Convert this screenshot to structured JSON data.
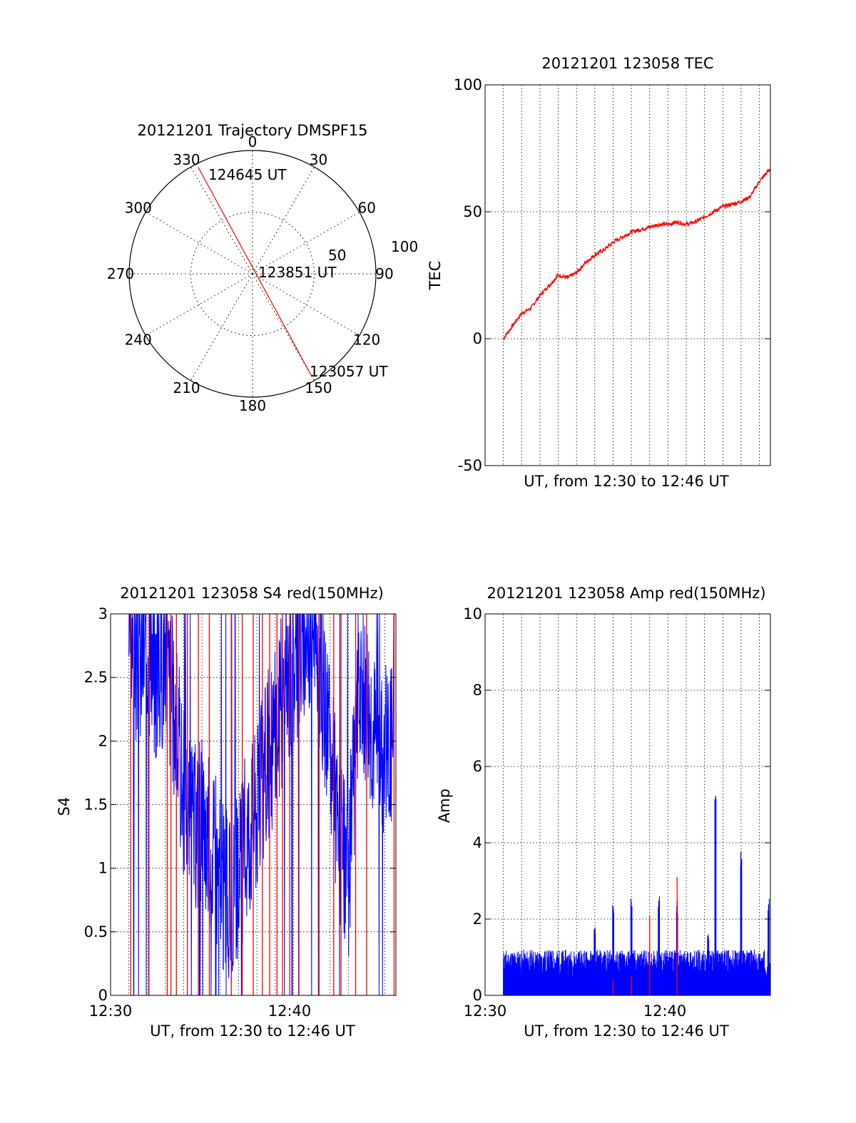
{
  "colors": {
    "red": "#ff0000",
    "blue": "#0000ff",
    "axis": "#000000",
    "grid": "#000000"
  },
  "chart_data": [
    {
      "type": "polar",
      "title": "20121201 Trajectory DMSPF15",
      "angle_labels": [
        "0",
        "30",
        "60",
        "90",
        "120",
        "150",
        "180",
        "210",
        "240",
        "270",
        "300",
        "330"
      ],
      "radial_labels": [
        "50",
        "100"
      ],
      "radial_max": 100,
      "grid": true,
      "trajectory": {
        "start_label": "123057 UT",
        "start": {
          "azimuth": 150,
          "radius": 96
        },
        "mid_label": "123851 UT",
        "mid": {
          "azimuth": 0,
          "radius": 0
        },
        "end_label": "124645 UT",
        "end": {
          "azimuth": 333,
          "radius": 97
        }
      }
    },
    {
      "type": "line",
      "title": "20121201 123058 TEC",
      "xlabel": "UT, from 12:30 to 12:46 UT",
      "ylabel": "TEC",
      "xlim": [
        0,
        15.6
      ],
      "ylim": [
        -50,
        100
      ],
      "yticks": [
        "-50",
        "0",
        "50",
        "100"
      ],
      "grid": true,
      "series": [
        {
          "color": "red",
          "x": [
            1.0,
            1.5,
            2.0,
            2.5,
            3.0,
            3.5,
            4.0,
            4.5,
            5.0,
            5.5,
            6.0,
            6.5,
            7.0,
            7.5,
            8.0,
            8.5,
            9.0,
            9.5,
            10.0,
            10.5,
            11.0,
            11.5,
            12.0,
            12.5,
            13.0,
            13.5,
            14.0,
            14.5,
            15.0,
            15.6
          ],
          "y": [
            0,
            5,
            10,
            12,
            17,
            21,
            25,
            24,
            26,
            30,
            33,
            35,
            38,
            40,
            42,
            43,
            44,
            45,
            45,
            46,
            45,
            46,
            48,
            50,
            52,
            53,
            54,
            56,
            62,
            67
          ]
        }
      ]
    },
    {
      "type": "line",
      "title": "20121201 123058 S4 red(150MHz)",
      "xlabel": "UT, from 12:30 to 12:46 UT",
      "ylabel": "S4",
      "xlim": [
        0,
        15.6
      ],
      "ylim": [
        0,
        3
      ],
      "xticks": [
        "12:30",
        "12:40"
      ],
      "yticks": [
        "0",
        "0.5",
        "1",
        "1.5",
        "2",
        "2.5",
        "3"
      ],
      "grid": true,
      "series": [
        {
          "color": "blue",
          "note": "dense noisy trace",
          "x": [
            1.0,
            1.5,
            2.0,
            2.5,
            3.0,
            3.5,
            4.0,
            4.5,
            5.0,
            5.5,
            6.0,
            6.5,
            7.0,
            7.5,
            8.0,
            8.5,
            9.0,
            9.5,
            10.0,
            10.5,
            11.0,
            11.5,
            12.0,
            12.5,
            13.0,
            13.5,
            14.0,
            14.5,
            15.0,
            15.5
          ],
          "y": [
            2.9,
            2.6,
            2.8,
            2.5,
            2.7,
            2.2,
            1.6,
            1.3,
            1.4,
            1.2,
            0.9,
            0.7,
            0.9,
            1.3,
            1.5,
            1.8,
            2.1,
            2.4,
            2.6,
            2.8,
            2.9,
            2.5,
            1.9,
            1.2,
            0.9,
            2.2,
            2.4,
            2.0,
            1.9,
            2.1
          ]
        },
        {
          "color": "red",
          "note": "sparse spikes",
          "x": [
            1.1,
            2.1,
            3.1,
            3.3,
            3.6,
            4.2,
            4.8,
            5.4,
            6.6,
            7.2,
            7.8,
            8.3,
            8.7,
            9.1,
            9.4,
            9.8,
            10.3,
            11.4,
            12.2,
            12.6,
            13.4,
            14.0,
            15.5
          ],
          "y": [
            0,
            0,
            0,
            0,
            0,
            0,
            0,
            0,
            0,
            0,
            0,
            0,
            0,
            0,
            0,
            0,
            0,
            0,
            0,
            0,
            0,
            0,
            0
          ]
        }
      ]
    },
    {
      "type": "line",
      "title": "20121201 123058 Amp red(150MHz)",
      "xlabel": "UT, from 12:30 to 12:46 UT",
      "ylabel": "Amp",
      "xlim": [
        0,
        15.6
      ],
      "ylim": [
        0,
        10
      ],
      "xticks": [
        "12:30",
        "12:40"
      ],
      "yticks": [
        "0",
        "2",
        "4",
        "6",
        "8",
        "10"
      ],
      "grid": true,
      "series": [
        {
          "color": "blue",
          "note": "noise floor with spikes",
          "x": [
            1.0,
            2.0,
            3.0,
            4.0,
            4.2,
            5.0,
            6.0,
            6.2,
            6.7,
            7.0,
            7.5,
            8.0,
            8.5,
            9.0,
            9.5,
            9.7,
            10.0,
            10.5,
            11.0,
            12.2,
            12.6,
            13.0,
            13.5,
            14.0,
            14.5,
            15.0,
            15.5
          ],
          "y": [
            1.2,
            1.1,
            1.3,
            1.0,
            1.4,
            1.2,
            1.8,
            1.3,
            1.2,
            2.5,
            1.5,
            2.6,
            1.3,
            1.1,
            2.6,
            1.2,
            1.3,
            2.5,
            1.2,
            1.6,
            5.7,
            1.5,
            1.2,
            3.9,
            1.3,
            1.2,
            2.6
          ]
        },
        {
          "color": "red",
          "note": "occasional spikes",
          "x": [
            7.0,
            8.0,
            9.0,
            10.5
          ],
          "y": [
            0.4,
            0.5,
            2.1,
            3.1
          ]
        }
      ]
    }
  ]
}
